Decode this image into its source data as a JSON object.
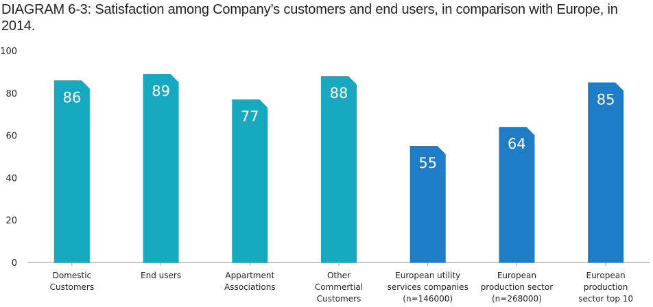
{
  "chart_data": {
    "type": "bar",
    "title": "DIAGRAM 6-3: Satisfaction among Company’s customers and end users, in comparison with Europe, in 2014.",
    "xlabel": "",
    "ylabel": "",
    "ylim": [
      0,
      100
    ],
    "yticks": [
      "0",
      "20",
      "40",
      "60",
      "80",
      "100"
    ],
    "grid": false,
    "categories": [
      [
        "Domestic",
        "Customers"
      ],
      [
        "End users"
      ],
      [
        "Appartment",
        "Associations"
      ],
      [
        "Other",
        "Commertial",
        "Customers"
      ],
      [
        "European utility",
        "services companies",
        "(n=146000)"
      ],
      [
        "European",
        "production sector",
        "(n=268000)"
      ],
      [
        "European",
        "production",
        "sector top 10"
      ]
    ],
    "values": [
      86,
      89,
      77,
      88,
      55,
      64,
      85
    ],
    "data_labels": [
      "86",
      "89",
      "77",
      "88",
      "55",
      "64",
      "85"
    ],
    "colors": [
      "#16a9bf",
      "#16a9bf",
      "#16a9bf",
      "#16a9bf",
      "#1f7cc6",
      "#1f7cc6",
      "#1f7cc6"
    ]
  }
}
